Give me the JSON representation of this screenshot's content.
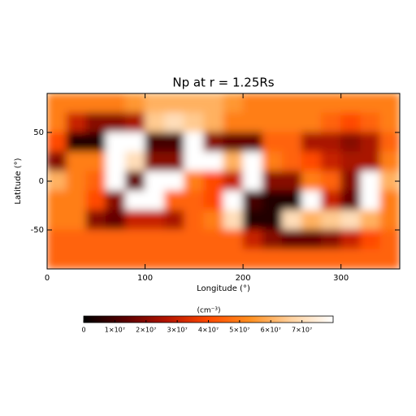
{
  "chart_data": {
    "type": "heatmap",
    "title": "Np at r = 1.25Rs",
    "xlabel": "Longitude (°)",
    "ylabel": "Latitude (°)",
    "colorbar_label": "(cm⁻³)",
    "xlim": [
      0,
      360
    ],
    "xticks": [
      0,
      100,
      200,
      300
    ],
    "ylim": [
      -90,
      90
    ],
    "yticks": [
      -50,
      0,
      50
    ],
    "clim": [
      0,
      80000000.0
    ],
    "cticks": [
      0,
      {
        "value": 10000000.0,
        "label": "1×10⁷"
      },
      {
        "value": 20000000.0,
        "label": "2×10⁷"
      },
      {
        "value": 30000000.0,
        "label": "3×10⁷"
      },
      {
        "value": 40000000.0,
        "label": "4×10⁷"
      },
      {
        "value": 50000000.0,
        "label": "5×10⁷"
      },
      {
        "value": 60000000.0,
        "label": "6×10⁷"
      },
      {
        "value": 70000000.0,
        "label": "7×10⁷"
      }
    ],
    "colormap": [
      "#000000",
      "#5a0000",
      "#b41400",
      "#ff4a00",
      "#ff8f20",
      "#ffd2a0",
      "#ffffff"
    ],
    "z": [
      [
        50000000.0,
        50000000.0,
        50000000.0,
        50000000.0,
        55000000.0,
        60000000.0,
        60000000.0,
        60000000.0,
        60000000.0,
        55000000.0,
        50000000.0,
        50000000.0,
        50000000.0,
        50000000.0,
        50000000.0,
        50000000.0,
        50000000.0,
        50000000.0
      ],
      [
        50000000.0,
        30000000.0,
        20000000.0,
        20000000.0,
        25000000.0,
        65000000.0,
        70000000.0,
        65000000.0,
        60000000.0,
        50000000.0,
        50000000.0,
        50000000.0,
        50000000.0,
        50000000.0,
        45000000.0,
        40000000.0,
        45000000.0,
        50000000.0
      ],
      [
        40000000.0,
        5000000.0,
        5000000.0,
        80000000.0,
        80000000.0,
        10000000.0,
        10000000.0,
        80000000.0,
        20000000.0,
        15000000.0,
        15000000.0,
        45000000.0,
        45000000.0,
        25000000.0,
        25000000.0,
        20000000.0,
        25000000.0,
        45000000.0
      ],
      [
        20000000.0,
        50000000.0,
        50000000.0,
        80000000.0,
        70000000.0,
        20000000.0,
        20000000.0,
        80000000.0,
        80000000.0,
        60000000.0,
        80000000.0,
        50000000.0,
        45000000.0,
        40000000.0,
        30000000.0,
        25000000.0,
        25000000.0,
        50000000.0
      ],
      [
        60000000.0,
        50000000.0,
        45000000.0,
        80000000.0,
        15000000.0,
        80000000.0,
        80000000.0,
        50000000.0,
        40000000.0,
        30000000.0,
        80000000.0,
        20000000.0,
        20000000.0,
        50000000.0,
        45000000.0,
        20000000.0,
        80000000.0,
        60000000.0
      ],
      [
        50000000.0,
        50000000.0,
        40000000.0,
        20000000.0,
        80000000.0,
        80000000.0,
        45000000.0,
        45000000.0,
        40000000.0,
        80000000.0,
        10000000.0,
        5000000.0,
        5000000.0,
        80000000.0,
        30000000.0,
        15000000.0,
        80000000.0,
        50000000.0
      ],
      [
        50000000.0,
        50000000.0,
        20000000.0,
        15000000.0,
        30000000.0,
        30000000.0,
        25000000.0,
        45000000.0,
        50000000.0,
        70000000.0,
        5000000.0,
        5000000.0,
        70000000.0,
        60000000.0,
        65000000.0,
        70000000.0,
        60000000.0,
        50000000.0
      ],
      [
        45000000.0,
        45000000.0,
        45000000.0,
        45000000.0,
        45000000.0,
        45000000.0,
        45000000.0,
        45000000.0,
        45000000.0,
        45000000.0,
        30000000.0,
        20000000.0,
        15000000.0,
        15000000.0,
        20000000.0,
        30000000.0,
        40000000.0,
        45000000.0
      ],
      [
        45000000.0,
        45000000.0,
        45000000.0,
        45000000.0,
        45000000.0,
        45000000.0,
        45000000.0,
        45000000.0,
        45000000.0,
        45000000.0,
        45000000.0,
        45000000.0,
        45000000.0,
        45000000.0,
        45000000.0,
        45000000.0,
        45000000.0,
        45000000.0
      ]
    ]
  }
}
